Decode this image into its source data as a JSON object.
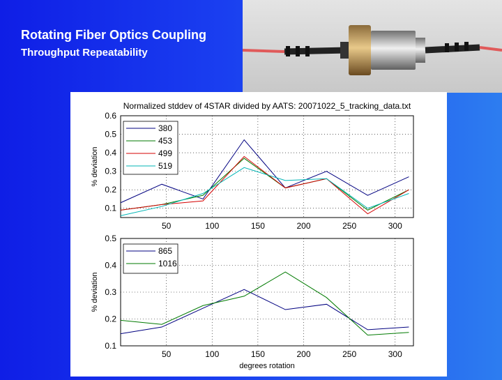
{
  "slide": {
    "title": "Rotating Fiber Optics Coupling",
    "subtitle": "Throughput Repeatability"
  },
  "photo": {
    "description_icon": "fiber-rotary-joint-photo"
  },
  "chart_data": [
    {
      "type": "line",
      "title": "Normalized stddev of 4STAR divided by AATS: 20071022_5_tracking_data.txt",
      "xlabel": "",
      "ylabel": "% deviation",
      "xlim": [
        0,
        320
      ],
      "ylim": [
        0.05,
        0.6
      ],
      "xticks": [
        50,
        100,
        150,
        200,
        250,
        300
      ],
      "yticks": [
        0.1,
        0.2,
        0.3,
        0.4,
        0.5,
        0.6
      ],
      "grid": true,
      "legend": "top-left",
      "series": [
        {
          "name": "380",
          "color": "#000080",
          "x": [
            0,
            45,
            90,
            135,
            180,
            225,
            270,
            315
          ],
          "values": [
            0.13,
            0.23,
            0.15,
            0.47,
            0.21,
            0.3,
            0.17,
            0.27
          ]
        },
        {
          "name": "453",
          "color": "#007a00",
          "x": [
            0,
            45,
            90,
            135,
            180,
            225,
            270,
            315
          ],
          "values": [
            0.09,
            0.12,
            0.17,
            0.37,
            0.21,
            0.26,
            0.09,
            0.2
          ]
        },
        {
          "name": "499",
          "color": "#d40000",
          "x": [
            0,
            45,
            90,
            135,
            180,
            225,
            270,
            315
          ],
          "values": [
            0.09,
            0.12,
            0.14,
            0.38,
            0.21,
            0.26,
            0.07,
            0.2
          ]
        },
        {
          "name": "519",
          "color": "#00b5b5",
          "x": [
            0,
            45,
            90,
            135,
            180,
            225,
            270,
            315
          ],
          "values": [
            0.06,
            0.11,
            0.18,
            0.32,
            0.25,
            0.26,
            0.1,
            0.18
          ]
        }
      ]
    },
    {
      "type": "line",
      "title": "",
      "xlabel": "degrees rotation",
      "ylabel": "% deviation",
      "xlim": [
        0,
        320
      ],
      "ylim": [
        0.1,
        0.5
      ],
      "xticks": [
        50,
        100,
        150,
        200,
        250,
        300
      ],
      "yticks": [
        0.1,
        0.2,
        0.3,
        0.4,
        0.5
      ],
      "grid": true,
      "legend": "top-left",
      "series": [
        {
          "name": "865",
          "color": "#000080",
          "x": [
            0,
            45,
            90,
            135,
            180,
            225,
            270,
            315
          ],
          "values": [
            0.145,
            0.17,
            0.24,
            0.31,
            0.235,
            0.255,
            0.16,
            0.17
          ]
        },
        {
          "name": "1016",
          "color": "#007a00",
          "x": [
            0,
            45,
            90,
            135,
            180,
            225,
            270,
            315
          ],
          "values": [
            0.195,
            0.18,
            0.25,
            0.285,
            0.375,
            0.28,
            0.14,
            0.15
          ]
        }
      ]
    }
  ]
}
